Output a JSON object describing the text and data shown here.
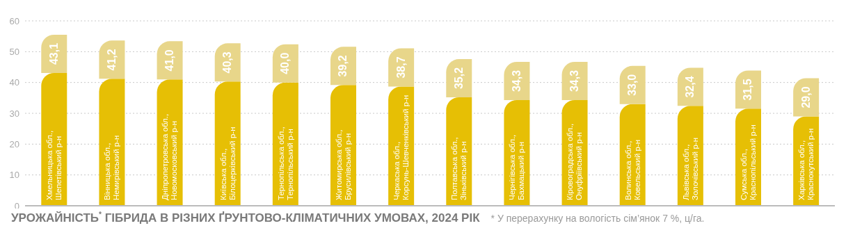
{
  "chart_data": {
    "type": "bar",
    "title": "УРОЖАЙНІСТЬ$^{*}$ ГІБРИДА В РІЗНИХ ҐРУНТОВО-КЛІМАТИЧНИХ УМОВАХ, 2024 РІК",
    "annotations": [
      "* У перерахунку на вологість сім’янок 7 %, ц/га."
    ],
    "categories": [
      "Хмельницька обл.,\nШепетівський р-н",
      "Вінницька обл.,\nНемирівський р-н",
      "Дніпропетровська обл.,\nНовомосковський р-н",
      "Київська обл.,\nБілоцерківський р-н",
      "Тернопільська обл.,\nТернопільський р-н",
      "Житомирська обл.,\nБрусилівський р-н",
      "Черкаська обл.,\nКорсунь-Шевченківський р-н",
      "Полтавська обл.,\nЗіньківський р-н",
      "Чернігівська обл.,\nБахмацький р-н",
      "Кіровоградська обл.,\nОнуфріївський р-н",
      "Волинська обл.,\nКовельський р-н",
      "Львівська обл.,\nЗолочівський р-н",
      "Сумська обл.,\nКраснопільський р-н",
      "Харківська обл.,\nКраснокутський р-н"
    ],
    "stacked": true,
    "series": [
      {
        "color": "#e6bf05",
        "values": [
          43.1,
          41.2,
          41.0,
          40.3,
          40.0,
          39.2,
          38.7,
          35.2,
          34.3,
          34.3,
          33.0,
          32.4,
          31.5,
          29.0
        ],
        "value_labels": [
          "43,1",
          "41,2",
          "41,0",
          "40,3",
          "40,0",
          "39,2",
          "38,7",
          "35,2",
          "34,3",
          "34,3",
          "33,0",
          "32,4",
          "31,5",
          "29,0"
        ]
      },
      {
        "color": "#e8d68a",
        "values": [
          12.4,
          12.4,
          12.4,
          12.4,
          12.4,
          12.4,
          12.4,
          12.4,
          12.4,
          12.4,
          12.4,
          12.4,
          12.4,
          12.4
        ]
      }
    ],
    "ylim": [
      0,
      60
    ],
    "yticks": [
      0,
      10,
      20,
      30,
      40,
      50,
      60
    ],
    "grid": "y",
    "legend": false
  }
}
